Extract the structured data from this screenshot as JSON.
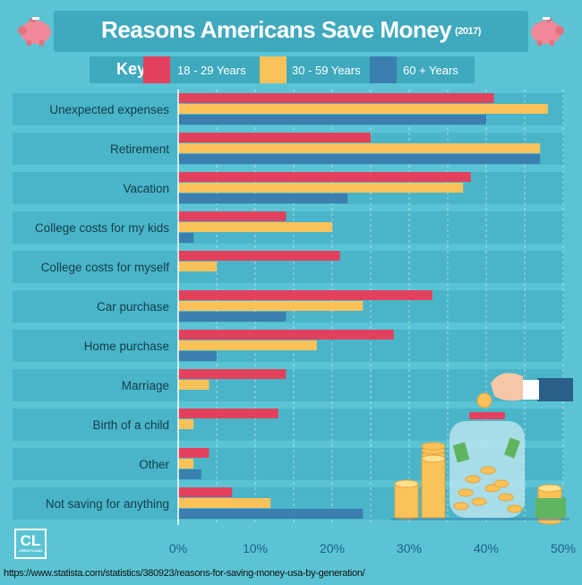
{
  "header": {
    "title": "Reasons Americans Save Money",
    "year": "(2017)"
  },
  "legend": {
    "key_label": "Key",
    "items": [
      {
        "label": "18 - 29 Years",
        "color": "#e2415e"
      },
      {
        "label": "30 - 59 Years",
        "color": "#fcc25a"
      },
      {
        "label": "60 + Years",
        "color": "#3a7fb0"
      }
    ]
  },
  "colors": {
    "background": "#5bc4d4",
    "row_band": "#4ab5c8",
    "title_band": "#3fa9bd"
  },
  "logo": {
    "text": "CL",
    "sub": "CREDITLOAN"
  },
  "source": "https://www.statista.com/statistics/380923/reasons-for-saving-money-usa-by-generation/",
  "chart_data": {
    "type": "bar",
    "orientation": "horizontal",
    "categories": [
      "Unexpected expenses",
      "Retirement",
      "Vacation",
      "College costs for my kids",
      "College costs for myself",
      "Car purchase",
      "Home purchase",
      "Marriage",
      "Birth of a child",
      "Other",
      "Not saving for anything"
    ],
    "series": [
      {
        "name": "18 - 29 Years",
        "values": [
          41,
          25,
          38,
          14,
          21,
          33,
          28,
          14,
          13,
          4,
          7
        ]
      },
      {
        "name": "30 - 59 Years",
        "values": [
          48,
          47,
          37,
          20,
          5,
          24,
          18,
          4,
          2,
          2,
          12
        ]
      },
      {
        "name": "60 + Years",
        "values": [
          40,
          47,
          22,
          2,
          0,
          14,
          5,
          0,
          0,
          3,
          24
        ]
      }
    ],
    "xlim": [
      0,
      50
    ],
    "ticks": [
      "0%",
      "10%",
      "20%",
      "30%",
      "40%",
      "50%"
    ],
    "tick_values": [
      0,
      10,
      20,
      30,
      40,
      50
    ],
    "grid": true,
    "legend_position": "top"
  }
}
